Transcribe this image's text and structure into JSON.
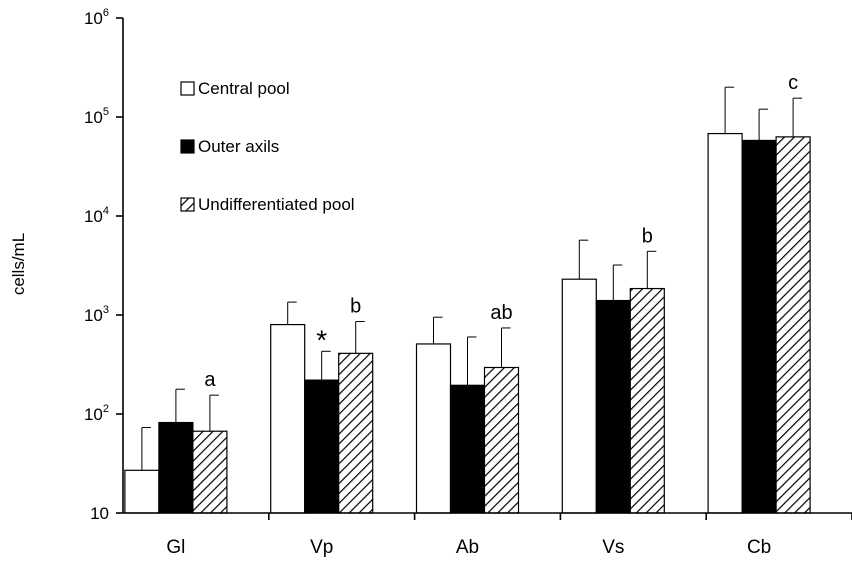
{
  "chart_data": {
    "type": "bar",
    "title": "",
    "xlabel": "",
    "ylabel": "cells/mL",
    "yscale": "log",
    "ylim": [
      10,
      1000000
    ],
    "yticks": [
      {
        "value": 10,
        "base": "10",
        "exp": ""
      },
      {
        "value": 100,
        "base": "10",
        "exp": "2"
      },
      {
        "value": 1000,
        "base": "10",
        "exp": "3"
      },
      {
        "value": 10000,
        "base": "10",
        "exp": "4"
      },
      {
        "value": 100000,
        "base": "10",
        "exp": "5"
      },
      {
        "value": 1000000,
        "base": "10",
        "exp": "6"
      }
    ],
    "categories": [
      "Gl",
      "Vp",
      "Ab",
      "Vs",
      "Cb"
    ],
    "series": [
      {
        "name": "Central pool",
        "fill": "white",
        "values": [
          27,
          800,
          510,
          2300,
          68000
        ],
        "error_upper": [
          73,
          1350,
          950,
          5700,
          200000
        ]
      },
      {
        "name": "Outer axils",
        "fill": "black",
        "values": [
          82,
          220,
          195,
          1400,
          58000
        ],
        "error_upper": [
          178,
          430,
          600,
          3200,
          120000
        ]
      },
      {
        "name": "Undifferentiated pool",
        "fill": "hatched",
        "values": [
          67,
          410,
          295,
          1850,
          63000
        ],
        "error_upper": [
          155,
          860,
          740,
          4400,
          155000
        ]
      }
    ],
    "annotations": [
      {
        "category": "Gl",
        "series": "Undifferentiated pool",
        "text": "a"
      },
      {
        "category": "Vp",
        "series": "Outer axils",
        "text": "*"
      },
      {
        "category": "Vp",
        "series": "Undifferentiated pool",
        "text": "b"
      },
      {
        "category": "Ab",
        "series": "Undifferentiated pool",
        "text": "ab"
      },
      {
        "category": "Vs",
        "series": "Undifferentiated pool",
        "text": "b"
      },
      {
        "category": "Cb",
        "series": "Undifferentiated pool",
        "text": "c"
      }
    ],
    "legend_position": "top-left",
    "grid": false
  }
}
